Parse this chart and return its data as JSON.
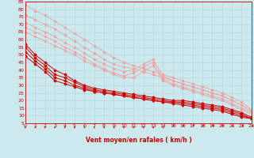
{
  "xlabel": "Vent moyen/en rafales ( km/h )",
  "xlim": [
    0,
    23
  ],
  "ylim": [
    5,
    85
  ],
  "yticks": [
    5,
    10,
    15,
    20,
    25,
    30,
    35,
    40,
    45,
    50,
    55,
    60,
    65,
    70,
    75,
    80,
    85
  ],
  "xticks": [
    0,
    1,
    2,
    3,
    4,
    5,
    6,
    7,
    8,
    9,
    10,
    11,
    12,
    13,
    14,
    15,
    16,
    17,
    18,
    19,
    20,
    21,
    22,
    23
  ],
  "background_color": "#cce9ee",
  "grid_color": "#aad4da",
  "line_color_light": "#f0a0a0",
  "line_color_dark": "#cc0000",
  "lines_light": [
    {
      "x": [
        0,
        1,
        2,
        3,
        4,
        5,
        6,
        7,
        8,
        9,
        10,
        11,
        12,
        13,
        14,
        15,
        16,
        17,
        18,
        19,
        20,
        21,
        22,
        23
      ],
      "y": [
        83,
        79,
        76,
        72,
        68,
        64,
        60,
        56,
        52,
        48,
        45,
        43,
        41,
        39,
        37,
        35,
        33,
        31,
        29,
        27,
        25,
        22,
        19,
        14
      ]
    },
    {
      "x": [
        0,
        1,
        2,
        3,
        4,
        5,
        6,
        7,
        8,
        9,
        10,
        11,
        12,
        13,
        14,
        15,
        16,
        17,
        18,
        19,
        20,
        21,
        22,
        23
      ],
      "y": [
        76,
        73,
        70,
        67,
        63,
        59,
        55,
        51,
        47,
        44,
        42,
        41,
        39,
        37,
        35,
        33,
        31,
        29,
        27,
        25,
        23,
        20,
        17,
        13
      ]
    },
    {
      "x": [
        0,
        1,
        2,
        3,
        4,
        5,
        6,
        7,
        8,
        9,
        10,
        11,
        12,
        13,
        14,
        15,
        16,
        17,
        18,
        19,
        20,
        21,
        22,
        23
      ],
      "y": [
        71,
        68,
        65,
        62,
        58,
        55,
        51,
        47,
        44,
        41,
        39,
        40,
        44,
        47,
        36,
        33,
        31,
        29,
        27,
        25,
        23,
        20,
        17,
        13
      ]
    },
    {
      "x": [
        0,
        1,
        2,
        3,
        4,
        5,
        6,
        7,
        8,
        9,
        10,
        11,
        12,
        13,
        14,
        15,
        16,
        17,
        18,
        19,
        20,
        21,
        22,
        23
      ],
      "y": [
        68,
        65,
        62,
        59,
        55,
        52,
        48,
        44,
        41,
        38,
        36,
        38,
        42,
        45,
        34,
        31,
        29,
        27,
        25,
        23,
        21,
        18,
        15,
        12
      ]
    },
    {
      "x": [
        0,
        1,
        2,
        3,
        4,
        5,
        6,
        7,
        8,
        9,
        10,
        11,
        12,
        13,
        14,
        15,
        16,
        17,
        18,
        19,
        20,
        21,
        22,
        23
      ],
      "y": [
        65,
        62,
        59,
        56,
        53,
        50,
        46,
        43,
        40,
        37,
        35,
        35,
        39,
        43,
        33,
        30,
        28,
        26,
        24,
        22,
        20,
        17,
        14,
        11
      ]
    }
  ],
  "lines_dark": [
    {
      "x": [
        0,
        1,
        2,
        3,
        4,
        5,
        6,
        7,
        8,
        9,
        10,
        11,
        12,
        13,
        14,
        15,
        16,
        17,
        18,
        19,
        20,
        21,
        22,
        23
      ],
      "y": [
        57,
        50,
        45,
        40,
        37,
        33,
        30,
        28,
        27,
        26,
        25,
        24,
        23,
        22,
        21,
        20,
        20,
        19,
        18,
        17,
        16,
        14,
        12,
        9
      ]
    },
    {
      "x": [
        0,
        1,
        2,
        3,
        4,
        5,
        6,
        7,
        8,
        9,
        10,
        11,
        12,
        13,
        14,
        15,
        16,
        17,
        18,
        19,
        20,
        21,
        22,
        23
      ],
      "y": [
        55,
        48,
        43,
        37,
        35,
        32,
        29,
        27,
        26,
        25,
        24,
        23,
        22,
        21,
        20,
        19,
        19,
        18,
        17,
        16,
        15,
        13,
        11,
        8
      ]
    },
    {
      "x": [
        0,
        1,
        2,
        3,
        4,
        5,
        6,
        7,
        8,
        9,
        10,
        11,
        12,
        13,
        14,
        15,
        16,
        17,
        18,
        19,
        20,
        21,
        22,
        23
      ],
      "y": [
        52,
        46,
        41,
        35,
        33,
        30,
        28,
        26,
        25,
        24,
        23,
        22,
        21,
        20,
        19,
        19,
        18,
        17,
        16,
        15,
        14,
        12,
        10,
        8
      ]
    },
    {
      "x": [
        0,
        1,
        2,
        3,
        4,
        5,
        6,
        7,
        8,
        9,
        10,
        11,
        12,
        13,
        14,
        15,
        16,
        17,
        18,
        19,
        20,
        21,
        22,
        23
      ],
      "y": [
        49,
        44,
        39,
        33,
        31,
        29,
        27,
        26,
        25,
        24,
        23,
        22,
        21,
        20,
        19,
        18,
        17,
        16,
        15,
        14,
        13,
        11,
        9,
        8
      ]
    }
  ],
  "arrow_color": "#cc0000",
  "tick_fontsize": 4.5,
  "label_fontsize": 5.5
}
